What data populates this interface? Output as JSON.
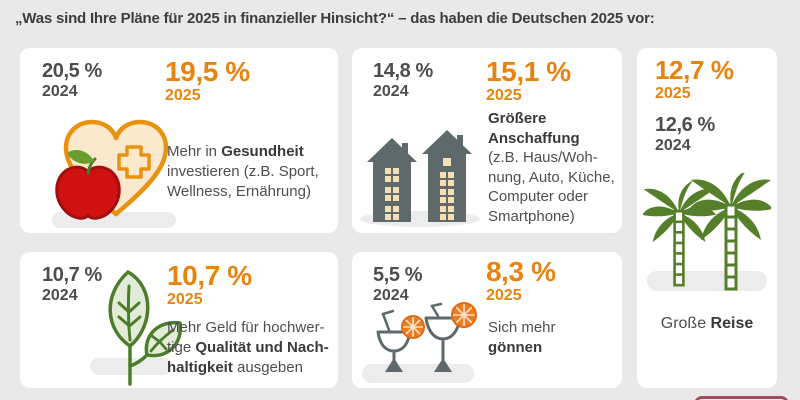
{
  "title": "„Was sind Ihre Pläne für 2025 in finanzieller Hinsicht?“ – das haben die Deutschen 2025 vor:",
  "colors": {
    "background": "#e9e9e9",
    "card": "#ffffff",
    "accent_orange": "#e8830f",
    "text_gray": "#4d4d4d",
    "title_gray": "#3d3d3d",
    "building_slate": "#5d696b",
    "window_cream": "#f6ddb2",
    "palm_green": "#567f2b",
    "leaf_green": "#4c7d2b",
    "leaf_fill": "#e4ecd9",
    "apple_red": "#d01112",
    "heart_fill": "#fbe9cd",
    "heart_outline": "#e8920f",
    "orange_slice": "#ed7d23",
    "icon_shadow": "#ececec",
    "cutoff_maroon": "#a34b5c"
  },
  "cards": [
    {
      "topic": "gesundheit",
      "icon": "heart-cross-apple-icon",
      "prev": {
        "value": "20,5 %",
        "year": "2024"
      },
      "curr": {
        "value": "19,5 %",
        "year": "2025"
      },
      "desc_lines": [
        [
          {
            "t": "Mehr in "
          },
          {
            "t": "Gesundheit",
            "b": 1
          }
        ],
        [
          {
            "t": "investieren (z.B. Sport,"
          }
        ],
        [
          {
            "t": "Wellness, Ernährung)"
          }
        ]
      ]
    },
    {
      "topic": "anschaffung",
      "icon": "buildings-icon",
      "prev": {
        "value": "14,8 %",
        "year": "2024"
      },
      "curr": {
        "value": "15,1 %",
        "year": "2025"
      },
      "desc_lines": [
        [
          {
            "t": "Größere",
            "b": 1
          }
        ],
        [
          {
            "t": "Anschaffung",
            "b": 1
          }
        ],
        [
          {
            "t": "(z.B. Haus/Woh-"
          }
        ],
        [
          {
            "t": "nung, Auto, Küche,"
          }
        ],
        [
          {
            "t": "Computer oder"
          }
        ],
        [
          {
            "t": "Smartphone)"
          }
        ]
      ]
    },
    {
      "topic": "reise",
      "icon": "palm-trees-icon",
      "prev": {
        "value": "12,6 %",
        "year": "2024"
      },
      "curr": {
        "value": "12,7 %",
        "year": "2025"
      },
      "desc_lines": [
        [
          {
            "t": "Große "
          },
          {
            "t": "Reise",
            "b": 1
          }
        ]
      ]
    },
    {
      "topic": "qualitaet-nachhaltigkeit",
      "icon": "leaves-icon",
      "prev": {
        "value": "10,7 %",
        "year": "2024"
      },
      "curr": {
        "value": "10,7 %",
        "year": "2025"
      },
      "desc_lines": [
        [
          {
            "t": "Mehr Geld für hochwer-"
          }
        ],
        [
          {
            "t": "tige "
          },
          {
            "t": "Qualität und Nach-",
            "b": 1
          }
        ],
        [
          {
            "t": "haltigkeit",
            "b": 1
          },
          {
            "t": " ausgeben"
          }
        ]
      ]
    },
    {
      "topic": "goennen",
      "icon": "cocktail-glasses-icon",
      "prev": {
        "value": "5,5 %",
        "year": "2024"
      },
      "curr": {
        "value": "8,3 %",
        "year": "2025"
      },
      "desc_lines": [
        [
          {
            "t": "Sich mehr"
          }
        ],
        [
          {
            "t": "gönnen",
            "b": 1
          }
        ]
      ]
    }
  ]
}
